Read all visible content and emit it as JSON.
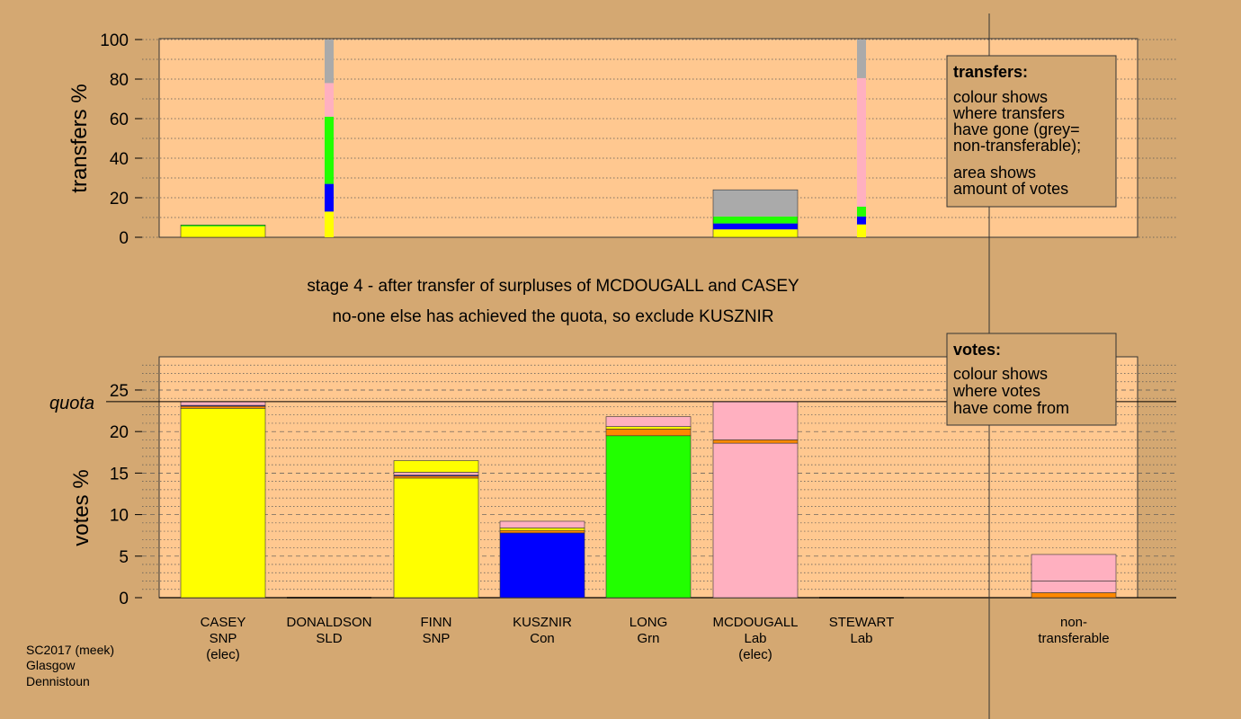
{
  "chart_data": [
    {
      "type": "bar",
      "stacked": true,
      "ylabel": "transfers %",
      "ylim": [
        0,
        100
      ],
      "yticks": [
        0,
        20,
        40,
        60,
        80,
        100
      ],
      "grid": "dotted",
      "legend": {
        "position": "top-right",
        "title": "transfers:",
        "lines1": [
          "colour shows",
          "where transfers",
          "have gone (grey=",
          "non-transferable);"
        ],
        "lines2": [
          "area shows",
          "amount of votes"
        ]
      },
      "categories": [
        "CASEY",
        "DONALDSON",
        "FINN",
        "KUSZNIR",
        "LONG",
        "MCDOUGALL",
        "STEWART",
        "non-transferable"
      ],
      "bars": [
        {
          "x": "CASEY",
          "width": "wide",
          "segments": [
            {
              "color": "#ffff00",
              "value": 5.5
            },
            {
              "color": "#22ff00",
              "value": 0.7
            }
          ]
        },
        {
          "x": "DONALDSON",
          "width": "narrow",
          "segments": [
            {
              "color": "#ffff00",
              "value": 13
            },
            {
              "color": "#0000ff",
              "value": 14
            },
            {
              "color": "#22ff00",
              "value": 34
            },
            {
              "color": "#ffb0c0",
              "value": 17
            },
            {
              "color": "#aaaaaa",
              "value": 22
            }
          ]
        },
        {
          "x": "MCDOUGALL",
          "width": "wide",
          "segments": [
            {
              "color": "#ffff00",
              "value": 4
            },
            {
              "color": "#0000ff",
              "value": 3
            },
            {
              "color": "#22ff00",
              "value": 3.5
            },
            {
              "color": "#aaaaaa",
              "value": 13.5
            }
          ]
        },
        {
          "x": "STEWART",
          "width": "narrow",
          "segments": [
            {
              "color": "#ffff00",
              "value": 6.5
            },
            {
              "color": "#0000ff",
              "value": 4
            },
            {
              "color": "#22ff00",
              "value": 5
            },
            {
              "color": "#ffb0c0",
              "value": 65
            },
            {
              "color": "#aaaaaa",
              "value": 19.5
            }
          ]
        }
      ]
    },
    {
      "type": "bar",
      "stacked": true,
      "ylabel": "votes %",
      "ylim": [
        0,
        29
      ],
      "yticks": [
        0,
        5,
        10,
        15,
        20,
        25
      ],
      "quota": 23.6,
      "quota_label": "quota",
      "grid": "dashed",
      "legend": {
        "position": "top-right",
        "title": "votes:",
        "lines": [
          "colour shows",
          "where votes",
          "have come from"
        ]
      },
      "candidates": [
        {
          "name": "CASEY",
          "party": "SNP",
          "status": "(elec)",
          "segments": [
            {
              "color": "#ffff00",
              "value": 22.8
            },
            {
              "color": "#ff8800",
              "value": 0.25
            },
            {
              "color": "#0000ff",
              "value": 0.1
            },
            {
              "color": "#ffb0c0",
              "value": 0.45
            }
          ]
        },
        {
          "name": "DONALDSON",
          "party": "SLD",
          "status": "",
          "segments": []
        },
        {
          "name": "FINN",
          "party": "SNP",
          "status": "",
          "segments": [
            {
              "color": "#ffff00",
              "value": 14.4
            },
            {
              "color": "#ff8800",
              "value": 0.25
            },
            {
              "color": "#0000ff",
              "value": 0.1
            },
            {
              "color": "#ffb0c0",
              "value": 0.35
            },
            {
              "color": "#ffff00",
              "value": 1.4
            }
          ]
        },
        {
          "name": "KUSZNIR",
          "party": "Con",
          "status": "",
          "segments": [
            {
              "color": "#0000ff",
              "value": 7.8
            },
            {
              "color": "#ff8800",
              "value": 0.3
            },
            {
              "color": "#ffff00",
              "value": 0.3
            },
            {
              "color": "#ffb0c0",
              "value": 0.8
            }
          ]
        },
        {
          "name": "LONG",
          "party": "Grn",
          "status": "",
          "segments": [
            {
              "color": "#22ff00",
              "value": 19.5
            },
            {
              "color": "#ff8800",
              "value": 0.8
            },
            {
              "color": "#ffff00",
              "value": 0.3
            },
            {
              "color": "#ffb0c0",
              "value": 1.2
            }
          ]
        },
        {
          "name": "MCDOUGALL",
          "party": "Lab",
          "status": "(elec)",
          "segments": [
            {
              "color": "#ffb0c0",
              "value": 18.6
            },
            {
              "color": "#ff8800",
              "value": 0.4
            },
            {
              "color": "#ffb0c0",
              "value": 4.6
            }
          ]
        },
        {
          "name": "STEWART",
          "party": "Lab",
          "status": "",
          "segments": []
        },
        {
          "name": "non-\ntransferable",
          "label_lines": [
            "non-",
            "transferable"
          ],
          "segments": [
            {
              "color": "#ff8800",
              "value": 0.6
            },
            {
              "color": "#ffb0c0",
              "value": 1.4
            },
            {
              "color": "#ffb0c0",
              "value": 3.2
            }
          ]
        }
      ]
    }
  ],
  "caption": {
    "line1": "stage 4 - after transfer of surpluses of MCDOUGALL and CASEY",
    "line2": "no-one else has achieved the quota, so exclude KUSZNIR"
  },
  "footer": [
    "SC2017 (meek)",
    "Glasgow",
    "Dennistoun"
  ]
}
